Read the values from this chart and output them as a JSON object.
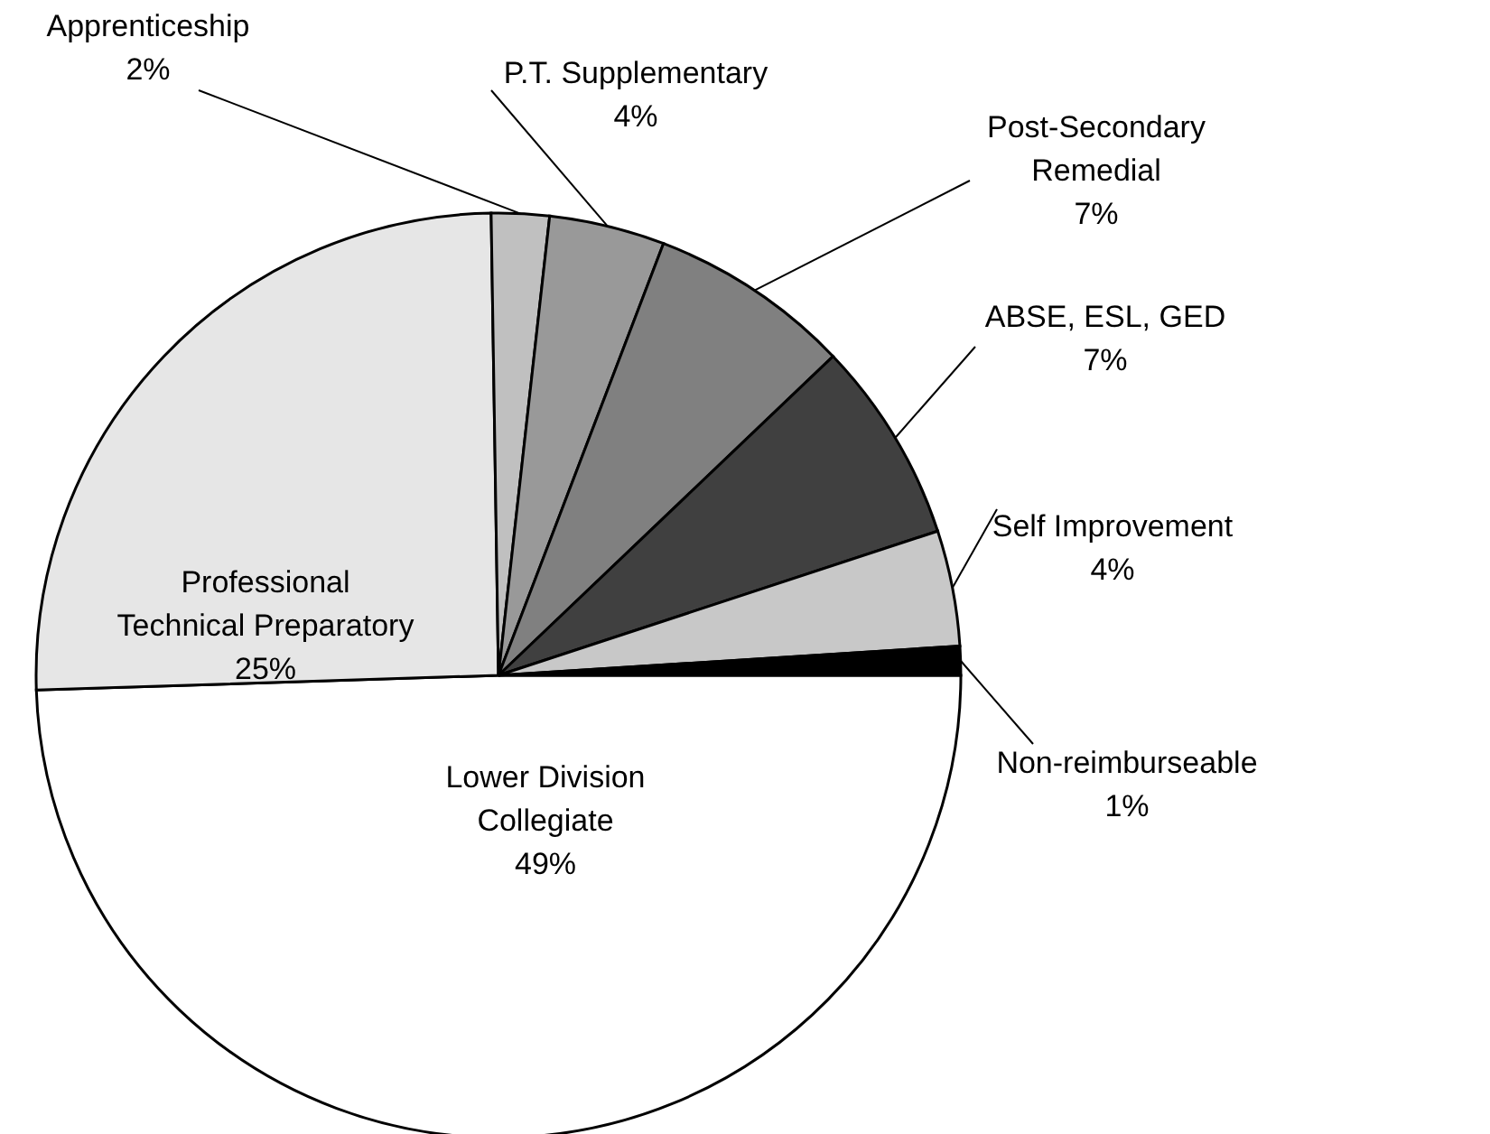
{
  "chart_data": {
    "type": "pie",
    "categories": [
      "Lower Division Collegiate",
      "Professional Technical Preparatory",
      "Apprenticeship",
      "P.T. Supplementary",
      "Post-Secondary Remedial",
      "ABSE, ESL, GED",
      "Self Improvement",
      "Non-reimburseable"
    ],
    "values": [
      49,
      25,
      2,
      4,
      7,
      7,
      4,
      1
    ],
    "value_labels": [
      "49%",
      "25%",
      "2%",
      "4%",
      "7%",
      "7%",
      "4%",
      "1%"
    ],
    "colors": [
      "#ffffff",
      "#e6e6e6",
      "#c0c0c0",
      "#999999",
      "#808080",
      "#404040",
      "#c8c8c8",
      "#000000"
    ]
  }
}
